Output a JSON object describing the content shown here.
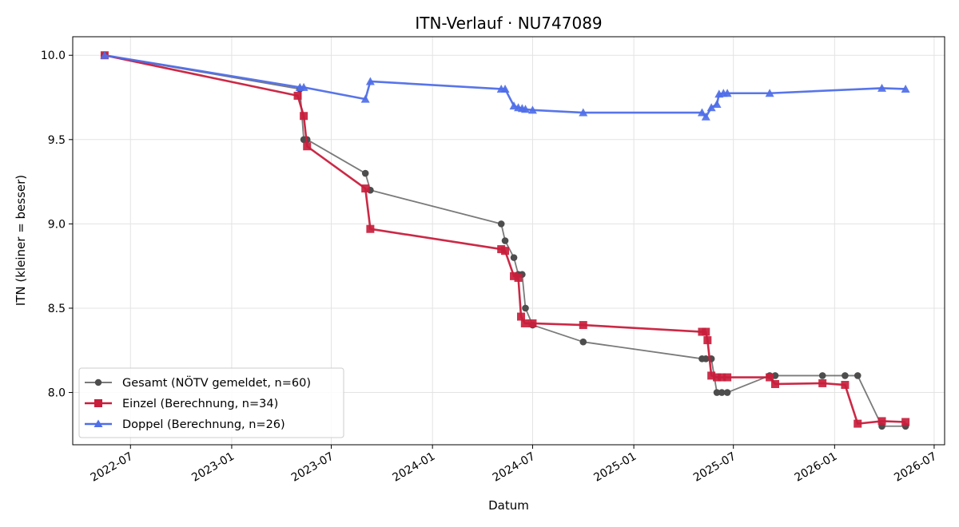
{
  "chart_data": {
    "type": "line",
    "title": "ITN-Verlauf · NU747089",
    "xlabel": "Datum",
    "ylabel": "ITN  (kleiner = besser)",
    "x_type": "date",
    "xlim": [
      "2022-03-18",
      "2026-07-20"
    ],
    "ylim": [
      7.69,
      10.11
    ],
    "y_ticks": [
      8.0,
      8.5,
      9.0,
      9.5,
      10.0
    ],
    "y_tick_labels": [
      "8.0",
      "8.5",
      "9.0",
      "9.5",
      "10.0"
    ],
    "x_ticks": [
      "2022-07-01",
      "2023-01-01",
      "2023-07-01",
      "2024-01-01",
      "2024-07-01",
      "2025-01-01",
      "2025-07-01",
      "2026-01-01",
      "2026-07-01"
    ],
    "x_tick_labels": [
      "2022-07",
      "2023-01",
      "2023-07",
      "2024-01",
      "2024-07",
      "2025-01",
      "2025-07",
      "2026-01",
      "2026-07"
    ],
    "grid": true,
    "legend_position": "lower-left",
    "series": [
      {
        "name": "Gesamt (NÖTV gemeldet, n=60)",
        "color": "#4d4d4d",
        "marker": "circle",
        "points": [
          [
            "2022-05-15",
            10.0
          ],
          [
            "2023-05-05",
            9.8
          ],
          [
            "2023-05-12",
            9.5
          ],
          [
            "2023-05-18",
            9.5
          ],
          [
            "2023-09-01",
            9.3
          ],
          [
            "2023-09-10",
            9.2
          ],
          [
            "2024-05-05",
            9.0
          ],
          [
            "2024-05-12",
            8.9
          ],
          [
            "2024-05-28",
            8.8
          ],
          [
            "2024-06-05",
            8.7
          ],
          [
            "2024-06-12",
            8.7
          ],
          [
            "2024-06-18",
            8.5
          ],
          [
            "2024-07-01",
            8.4
          ],
          [
            "2024-10-01",
            8.3
          ],
          [
            "2025-05-05",
            8.2
          ],
          [
            "2025-05-12",
            8.2
          ],
          [
            "2025-05-22",
            8.2
          ],
          [
            "2025-06-01",
            8.0
          ],
          [
            "2025-06-10",
            8.0
          ],
          [
            "2025-06-20",
            8.0
          ],
          [
            "2025-09-05",
            8.1
          ],
          [
            "2025-09-15",
            8.1
          ],
          [
            "2025-12-10",
            8.1
          ],
          [
            "2026-01-20",
            8.1
          ],
          [
            "2026-02-12",
            8.1
          ],
          [
            "2026-03-28",
            7.8
          ],
          [
            "2026-05-10",
            7.8
          ]
        ]
      },
      {
        "name": "Einzel (Berechnung, n=34)",
        "color": "#c81e3c",
        "marker": "square",
        "points": [
          [
            "2022-05-15",
            10.0
          ],
          [
            "2023-05-01",
            9.76
          ],
          [
            "2023-05-12",
            9.64
          ],
          [
            "2023-05-18",
            9.46
          ],
          [
            "2023-09-01",
            9.21
          ],
          [
            "2023-09-10",
            8.97
          ],
          [
            "2024-05-05",
            8.85
          ],
          [
            "2024-05-12",
            8.84
          ],
          [
            "2024-05-28",
            8.69
          ],
          [
            "2024-06-05",
            8.68
          ],
          [
            "2024-06-10",
            8.45
          ],
          [
            "2024-06-17",
            8.41
          ],
          [
            "2024-07-01",
            8.41
          ],
          [
            "2024-10-01",
            8.4
          ],
          [
            "2025-05-05",
            8.36
          ],
          [
            "2025-05-12",
            8.36
          ],
          [
            "2025-05-15",
            8.31
          ],
          [
            "2025-05-22",
            8.1
          ],
          [
            "2025-06-01",
            8.09
          ],
          [
            "2025-06-10",
            8.09
          ],
          [
            "2025-06-20",
            8.09
          ],
          [
            "2025-09-05",
            8.09
          ],
          [
            "2025-09-15",
            8.05
          ],
          [
            "2025-12-10",
            8.055
          ],
          [
            "2026-01-20",
            8.045
          ],
          [
            "2026-02-12",
            7.815
          ],
          [
            "2026-03-28",
            7.83
          ],
          [
            "2026-05-10",
            7.825
          ]
        ]
      },
      {
        "name": "Doppel (Berechnung, n=26)",
        "color": "#4f6ee8",
        "marker": "triangle",
        "points": [
          [
            "2022-05-15",
            10.0
          ],
          [
            "2023-05-05",
            9.81
          ],
          [
            "2023-05-12",
            9.81
          ],
          [
            "2023-09-01",
            9.74
          ],
          [
            "2023-09-10",
            9.845
          ],
          [
            "2024-05-05",
            9.8
          ],
          [
            "2024-05-12",
            9.8
          ],
          [
            "2024-05-28",
            9.7
          ],
          [
            "2024-06-05",
            9.69
          ],
          [
            "2024-06-12",
            9.685
          ],
          [
            "2024-06-18",
            9.68
          ],
          [
            "2024-07-01",
            9.675
          ],
          [
            "2024-10-01",
            9.66
          ],
          [
            "2025-05-05",
            9.66
          ],
          [
            "2025-05-12",
            9.635
          ],
          [
            "2025-05-22",
            9.69
          ],
          [
            "2025-06-01",
            9.71
          ],
          [
            "2025-06-05",
            9.77
          ],
          [
            "2025-06-13",
            9.775
          ],
          [
            "2025-06-20",
            9.775
          ],
          [
            "2025-09-05",
            9.775
          ],
          [
            "2026-03-28",
            9.805
          ],
          [
            "2026-05-10",
            9.8
          ]
        ]
      }
    ]
  }
}
